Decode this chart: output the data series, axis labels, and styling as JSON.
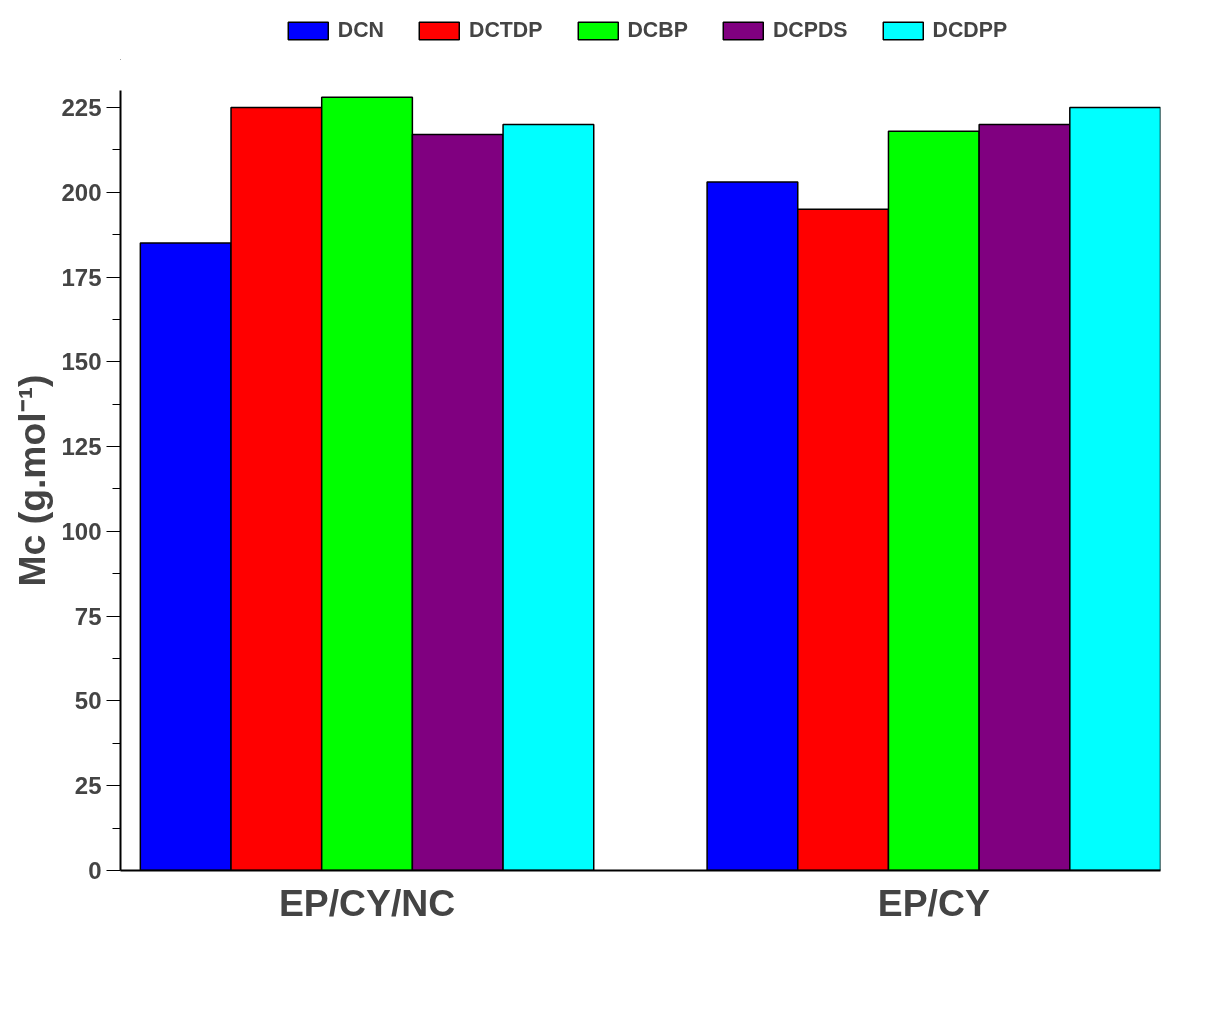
{
  "chart_data": {
    "type": "bar",
    "ylabel": "Mc (g.mol⁻¹)",
    "categories": [
      "EP/CY/NC",
      "EP/CY"
    ],
    "series": [
      {
        "name": "DCN",
        "color": "#0000ff",
        "values": [
          185,
          203
        ]
      },
      {
        "name": "DCTDP",
        "color": "#ff0000",
        "values": [
          225,
          195
        ]
      },
      {
        "name": "DCBP",
        "color": "#00ff00",
        "values": [
          228,
          218
        ]
      },
      {
        "name": "DCPDS",
        "color": "#800080",
        "values": [
          217,
          220
        ]
      },
      {
        "name": "DCDPP",
        "color": "#00ffff",
        "values": [
          220,
          225
        ]
      }
    ],
    "ylim": [
      0,
      230
    ],
    "yticks": [
      0,
      25,
      50,
      75,
      100,
      125,
      150,
      175,
      200,
      225
    ],
    "grid": false,
    "legend": "top"
  }
}
